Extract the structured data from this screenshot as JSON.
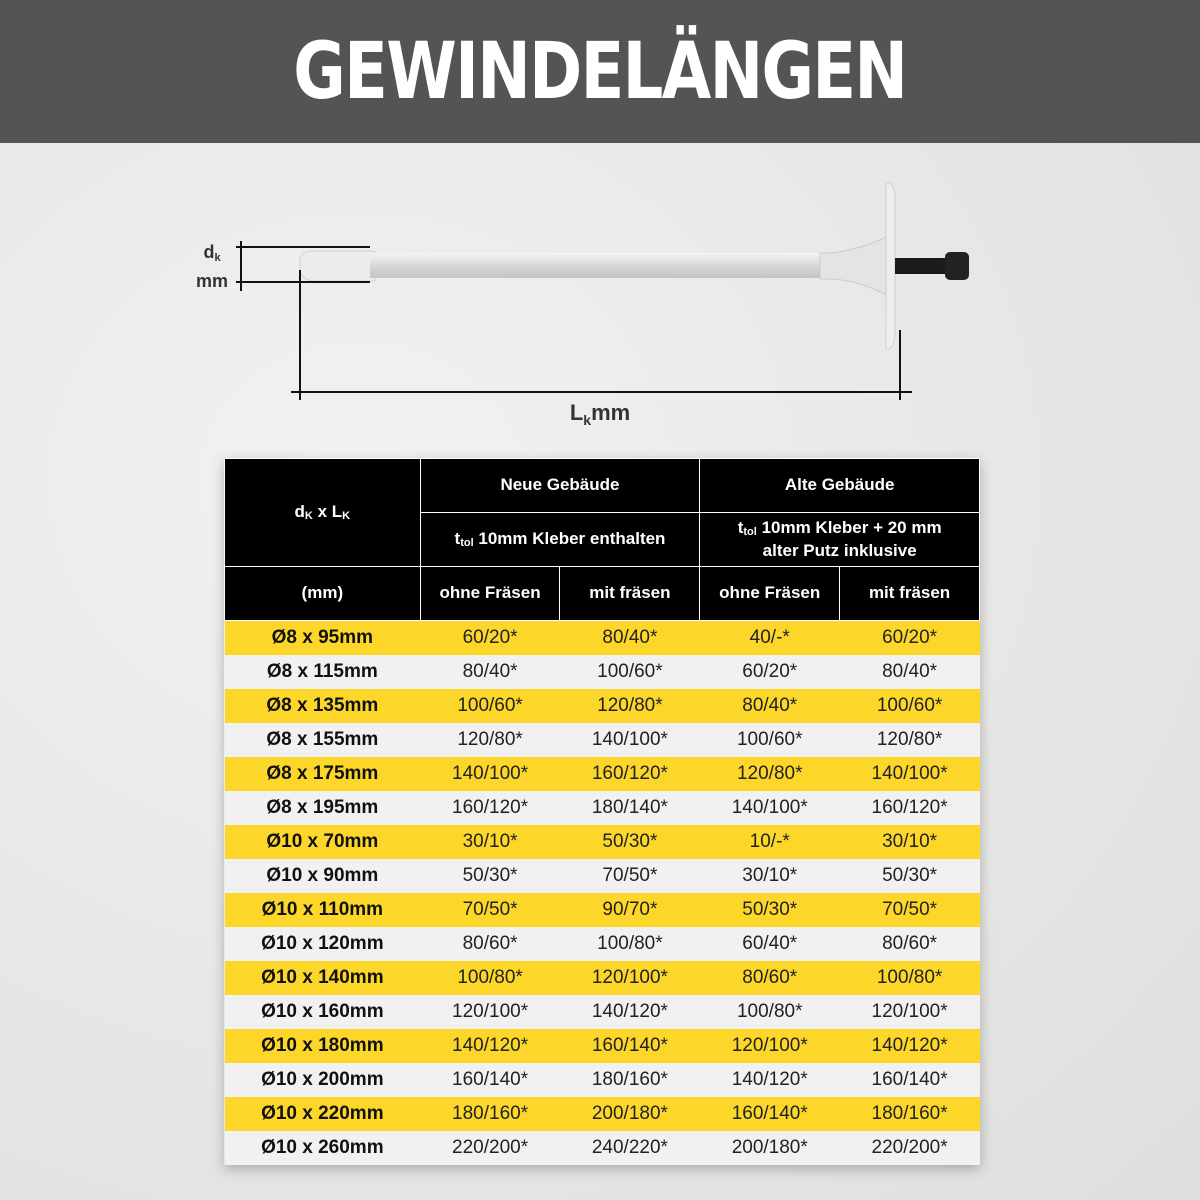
{
  "title": "GEWINDELÄNGEN",
  "diagram": {
    "dk_label": "d",
    "dk_sub": "k",
    "dk_unit": "mm",
    "lk_label": "L",
    "lk_sub": "k",
    "lk_unit": "mm"
  },
  "colors": {
    "banner": "#545454",
    "yellow_row": "#fcd72a",
    "grey_row": "#f1f1f1",
    "header": "#000000"
  },
  "table": {
    "col0_top": "d",
    "col0_top_sub1": "K",
    "col0_top_mid": " x L",
    "col0_top_sub2": "K",
    "col0_unit": "(mm)",
    "group_new": "Neue Gebäude",
    "group_old": "Alte Gebäude",
    "ttol": "t",
    "ttol_sub": "tol",
    "new_desc": " 10mm Kleber enthalten",
    "old_desc_1": " 10mm Kleber + 20 mm",
    "old_desc_2": "alter Putz inklusive",
    "sub_headers": [
      "ohne Fräsen",
      "mit fräsen",
      "ohne Fräsen",
      "mit fräsen"
    ],
    "rows": [
      [
        "Ø8 x 95mm",
        "60/20*",
        "80/40*",
        "40/-*",
        "60/20*"
      ],
      [
        "Ø8 x 115mm",
        "80/40*",
        "100/60*",
        "60/20*",
        "80/40*"
      ],
      [
        "Ø8 x 135mm",
        "100/60*",
        "120/80*",
        "80/40*",
        "100/60*"
      ],
      [
        "Ø8 x 155mm",
        "120/80*",
        "140/100*",
        "100/60*",
        "120/80*"
      ],
      [
        "Ø8 x 175mm",
        "140/100*",
        "160/120*",
        "120/80*",
        "140/100*"
      ],
      [
        "Ø8 x 195mm",
        "160/120*",
        "180/140*",
        "140/100*",
        "160/120*"
      ],
      [
        "Ø10 x 70mm",
        "30/10*",
        "50/30*",
        "10/-*",
        "30/10*"
      ],
      [
        "Ø10 x 90mm",
        "50/30*",
        "70/50*",
        "30/10*",
        "50/30*"
      ],
      [
        "Ø10 x 110mm",
        "70/50*",
        "90/70*",
        "50/30*",
        "70/50*"
      ],
      [
        "Ø10 x 120mm",
        "80/60*",
        "100/80*",
        "60/40*",
        "80/60*"
      ],
      [
        "Ø10 x 140mm",
        "100/80*",
        "120/100*",
        "80/60*",
        "100/80*"
      ],
      [
        "Ø10 x 160mm",
        "120/100*",
        "140/120*",
        "100/80*",
        "120/100*"
      ],
      [
        "Ø10 x 180mm",
        "140/120*",
        "160/140*",
        "120/100*",
        "140/120*"
      ],
      [
        "Ø10 x 200mm",
        "160/140*",
        "180/160*",
        "140/120*",
        "160/140*"
      ],
      [
        "Ø10 x 220mm",
        "180/160*",
        "200/180*",
        "160/140*",
        "180/160*"
      ],
      [
        "Ø10 x 260mm",
        "220/200*",
        "240/220*",
        "200/180*",
        "220/200*"
      ]
    ]
  }
}
